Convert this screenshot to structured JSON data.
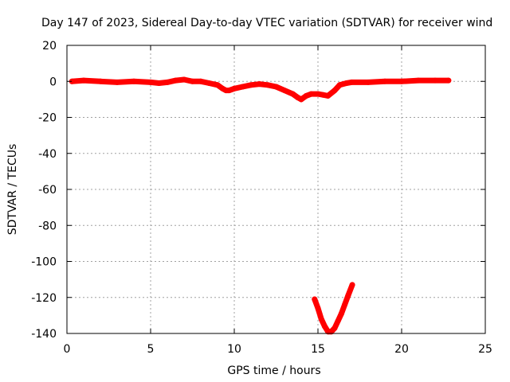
{
  "chart_data": {
    "type": "scatter",
    "title": "Day 147 of 2023, Sidereal Day-to-day VTEC variation (SDTVAR) for receiver wind",
    "xlabel": "GPS time / hours",
    "ylabel": "SDTVAR / TECUs",
    "xlim": [
      0,
      25
    ],
    "ylim": [
      -140,
      20
    ],
    "xticks": [
      0,
      5,
      10,
      15,
      20,
      25
    ],
    "yticks": [
      -140,
      -120,
      -100,
      -80,
      -60,
      -40,
      -20,
      0,
      20
    ],
    "xtick_labels": [
      "0",
      "5",
      "10",
      "15",
      "20",
      "25"
    ],
    "ytick_labels": [
      "-140",
      "-120",
      "-100",
      "-80",
      "-60",
      "-40",
      "-20",
      "0",
      "20"
    ],
    "grid": true,
    "legend": "none",
    "series": [
      {
        "color": "#ff0000",
        "x": [
          0.3,
          1,
          2,
          3,
          4,
          5,
          5.5,
          6,
          6.5,
          7,
          7.5,
          8,
          8.5,
          9,
          9.3,
          9.5,
          9.7,
          10,
          10.5,
          11,
          11.5,
          12,
          12.5,
          13,
          13.5,
          13.8,
          14,
          14.3,
          14.6,
          15,
          15.3,
          15.6,
          16,
          16.3,
          16.7,
          17,
          18,
          19,
          20,
          21,
          22,
          22.8
        ],
        "y": [
          0,
          0.5,
          0,
          -0.5,
          0,
          -0.5,
          -1,
          -0.5,
          0.5,
          1,
          0,
          0,
          -1,
          -2,
          -4,
          -5,
          -5,
          -4,
          -3,
          -2,
          -1.5,
          -2,
          -3,
          -5,
          -7,
          -9,
          -10,
          -8,
          -7,
          -7,
          -7.5,
          -8,
          -5,
          -2,
          -1,
          -0.5,
          -0.5,
          0,
          0,
          0.5,
          0.5,
          0.5
        ]
      },
      {
        "color": "#ff0000",
        "x": [
          14.8,
          15,
          15.2,
          15.4,
          15.6,
          15.8,
          16,
          16.2,
          16.4,
          16.6,
          16.8,
          17.05
        ],
        "y": [
          -121,
          -126,
          -132,
          -136,
          -139,
          -139,
          -137,
          -133,
          -129,
          -124,
          -119,
          -113
        ]
      }
    ]
  }
}
